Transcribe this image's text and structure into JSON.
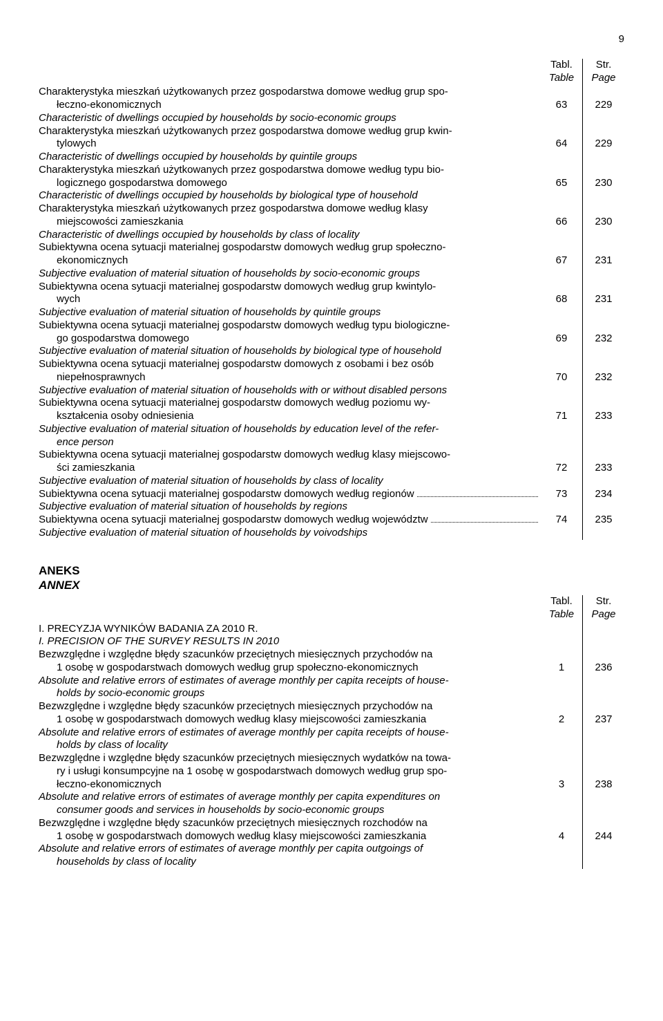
{
  "page_number_top": "9",
  "header": {
    "col1_pl": "Tabl.",
    "col1_en": "Table",
    "col2_pl": "Str.",
    "col2_en": "Page"
  },
  "main_entries": [
    {
      "pl_lines": [
        "Charakterystyka mieszkań użytkowanych przez gospodarstwa domowe według grup spo-",
        "łeczno-ekonomicznych"
      ],
      "en": "Characteristic of dwellings occupied by households by socio-economic groups",
      "tabl": "63",
      "page": "229"
    },
    {
      "pl_lines": [
        "Charakterystyka mieszkań użytkowanych przez gospodarstwa domowe według grup kwin-",
        "tylowych"
      ],
      "en": "Characteristic of dwellings occupied by households by quintile groups",
      "tabl": "64",
      "page": "229"
    },
    {
      "pl_lines": [
        "Charakterystyka mieszkań użytkowanych przez gospodarstwa domowe według typu bio-",
        "logicznego gospodarstwa domowego"
      ],
      "en": "Characteristic of dwellings occupied by households by biological type of household",
      "tabl": "65",
      "page": "230"
    },
    {
      "pl_lines": [
        "Charakterystyka mieszkań użytkowanych przez gospodarstwa domowe według klasy",
        "miejscowości zamieszkania"
      ],
      "en": "Characteristic of dwellings occupied by households by class of locality",
      "tabl": "66",
      "page": "230"
    },
    {
      "pl_lines": [
        "Subiektywna ocena sytuacji materialnej gospodarstw domowych według grup społeczno-",
        "ekonomicznych"
      ],
      "en": "Subjective evaluation of material situation of households by socio-economic groups",
      "tabl": "67",
      "page": "231"
    },
    {
      "pl_lines": [
        "Subiektywna ocena sytuacji materialnej gospodarstw domowych według grup kwintylo-",
        "wych"
      ],
      "en": "Subjective evaluation of material situation of households by quintile groups",
      "tabl": "68",
      "page": "231"
    },
    {
      "pl_lines": [
        "Subiektywna ocena sytuacji materialnej gospodarstw domowych według typu biologiczne-",
        "go gospodarstwa domowego"
      ],
      "en": "Subjective evaluation of material situation of households by biological type of household",
      "tabl": "69",
      "page": "232"
    },
    {
      "pl_lines": [
        "Subiektywna ocena sytuacji materialnej gospodarstw domowych z osobami i bez osób",
        "niepełnosprawnych"
      ],
      "en": "Subjective evaluation of material situation of households with or without disabled persons",
      "tabl": "70",
      "page": "232"
    },
    {
      "pl_lines": [
        "Subiektywna ocena sytuacji materialnej gospodarstw domowych według poziomu wy-",
        "kształcenia osoby odniesienia"
      ],
      "en_lines": [
        "Subjective evaluation of material situation of households by education level of the refer-",
        "ence person"
      ],
      "tabl": "71",
      "page": "233"
    },
    {
      "pl_lines": [
        "Subiektywna ocena sytuacji materialnej gospodarstw domowych według klasy miejscowo-",
        "ści zamieszkania"
      ],
      "en": "Subjective evaluation of material situation of households by class of locality",
      "tabl": "72",
      "page": "233"
    },
    {
      "pl_single": "Subiektywna ocena sytuacji materialnej gospodarstw domowych według regionów",
      "en": "Subjective evaluation of material situation of households by regions",
      "tabl": "73",
      "page": "234"
    },
    {
      "pl_single": "Subiektywna ocena sytuacji materialnej gospodarstw domowych według województw",
      "en": "Subjective evaluation of material situation of households by voivodships",
      "tabl": "74",
      "page": "235"
    }
  ],
  "annex": {
    "heading_pl": "ANEKS",
    "heading_en": "ANNEX",
    "section_pl": "I. PRECYZJA WYNIKÓW BADANIA ZA 2010 R.",
    "section_en": "I. PRECISION OF THE SURVEY RESULTS IN 2010",
    "entries": [
      {
        "pl_lines": [
          "Bezwzględne i względne błędy szacunków przeciętnych miesięcznych przychodów na",
          "1 osobę w gospodarstwach domowych według grup społeczno-ekonomicznych"
        ],
        "en_lines": [
          "Absolute and relative errors of estimates of average monthly per capita receipts of house-",
          "holds by socio-economic groups"
        ],
        "tabl": "1",
        "page": "236"
      },
      {
        "pl_lines": [
          "Bezwzględne i względne błędy szacunków przeciętnych miesięcznych przychodów na",
          "1 osobę w gospodarstwach domowych według klasy miejscowości zamieszkania"
        ],
        "en_lines": [
          "Absolute and relative errors of estimates of average monthly per capita receipts of house-",
          "holds by class of locality"
        ],
        "tabl": "2",
        "page": "237"
      },
      {
        "pl_lines": [
          "Bezwzględne i względne błędy szacunków przeciętnych miesięcznych wydatków na towa-",
          "ry i usługi konsumpcyjne na 1 osobę w gospodarstwach domowych według grup spo-",
          "łeczno-ekonomicznych"
        ],
        "en_lines": [
          "Absolute and relative errors of estimates of average monthly per capita expenditures on",
          "consumer goods and services in households by socio-economic groups"
        ],
        "tabl": "3",
        "page": "238"
      },
      {
        "pl_lines": [
          "Bezwzględne i względne błędy szacunków przeciętnych miesięcznych rozchodów na",
          "1 osobę w gospodarstwach domowych według klasy miejscowości zamieszkania"
        ],
        "en_lines": [
          "Absolute and relative errors of estimates of average monthly per capita outgoings of",
          "households by class of locality"
        ],
        "tabl": "4",
        "page": "244"
      }
    ]
  }
}
